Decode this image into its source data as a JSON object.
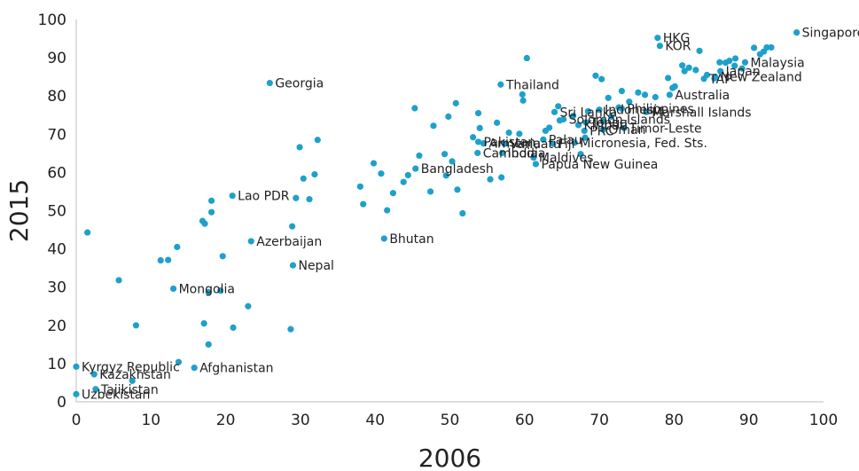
{
  "chart_data": {
    "type": "scatter",
    "xlabel": "2006",
    "ylabel": "2015",
    "xlim": [
      0,
      100
    ],
    "ylim": [
      0,
      100
    ],
    "x_ticks": [
      0,
      10,
      20,
      30,
      40,
      50,
      60,
      70,
      80,
      90,
      100
    ],
    "y_ticks": [
      0,
      10,
      20,
      30,
      40,
      50,
      60,
      70,
      80,
      90,
      100
    ],
    "grid": false,
    "point_color": "#1ea0cc",
    "points": [
      {
        "x": 0.0,
        "y": 9.2,
        "label": "Kyrgyz Republic"
      },
      {
        "x": 2.4,
        "y": 7.2,
        "label": "Kazakhstan"
      },
      {
        "x": 2.6,
        "y": 3.3,
        "label": "Tajikistan"
      },
      {
        "x": 0.0,
        "y": 2.0,
        "label": "Uzbekistan"
      },
      {
        "x": 15.8,
        "y": 8.9,
        "label": "Afghanistan"
      },
      {
        "x": 13.0,
        "y": 29.6,
        "label": "Mongolia"
      },
      {
        "x": 20.9,
        "y": 53.9,
        "label": "Lao PDR"
      },
      {
        "x": 23.4,
        "y": 42.0,
        "label": "Azerbaijan"
      },
      {
        "x": 29.0,
        "y": 35.7,
        "label": "Nepal"
      },
      {
        "x": 25.9,
        "y": 83.4,
        "label": "Georgia"
      },
      {
        "x": 41.2,
        "y": 42.7,
        "label": "Bhutan"
      },
      {
        "x": 45.4,
        "y": 61.0,
        "label": "Bangladesh"
      },
      {
        "x": 53.7,
        "y": 65.1,
        "label": "Cambodia"
      },
      {
        "x": 57.0,
        "y": 65.1,
        "label": "India"
      },
      {
        "x": 56.8,
        "y": 83.0,
        "label": "Thailand"
      },
      {
        "x": 61.5,
        "y": 62.2,
        "label": "Papua New Guinea"
      },
      {
        "x": 61.2,
        "y": 63.9,
        "label": "Maldives"
      },
      {
        "x": 53.8,
        "y": 68.0,
        "label": "Pakistan"
      },
      {
        "x": 54.5,
        "y": 67.6,
        "label": "Armenia"
      },
      {
        "x": 57.3,
        "y": 67.5,
        "label": "Vanuatu"
      },
      {
        "x": 62.5,
        "y": 68.6,
        "label": "Palau"
      },
      {
        "x": 63.8,
        "y": 67.5,
        "label": "Fiji"
      },
      {
        "x": 66.7,
        "y": 67.8,
        "label": "Micronesia, Fed. Sts."
      },
      {
        "x": 64.0,
        "y": 75.8,
        "label": "Sri Lanka"
      },
      {
        "x": 70.0,
        "y": 76.4,
        "label": "Indonesia"
      },
      {
        "x": 73.0,
        "y": 76.7,
        "label": "Philippines"
      },
      {
        "x": 76.3,
        "y": 75.8,
        "label": "Marshall Islands"
      },
      {
        "x": 65.2,
        "y": 73.9,
        "label": "Solomon Islands"
      },
      {
        "x": 68.2,
        "y": 73.1,
        "label": "Tonga"
      },
      {
        "x": 67.2,
        "y": 72.4,
        "label": "Kiribati"
      },
      {
        "x": 68.0,
        "y": 70.9,
        "label": "PRC"
      },
      {
        "x": 70.5,
        "y": 71.2,
        "label": "Oman"
      },
      {
        "x": 73.3,
        "y": 71.6,
        "label": "Timor-Leste"
      },
      {
        "x": 79.4,
        "y": 80.3,
        "label": "Australia"
      },
      {
        "x": 77.8,
        "y": 95.2,
        "label": "HKG"
      },
      {
        "x": 78.1,
        "y": 93.1,
        "label": "KOR"
      },
      {
        "x": 84.0,
        "y": 84.5,
        "label": "TAP"
      },
      {
        "x": 96.4,
        "y": 96.6,
        "label": "Singapore"
      },
      {
        "x": 89.5,
        "y": 88.8,
        "label": "Malaysia"
      },
      {
        "x": 86.2,
        "y": 86.5,
        "label": "Japan"
      },
      {
        "x": 85.5,
        "y": 85.0,
        "label": "New Zealand"
      },
      {
        "x": 1.5,
        "y": 44.3
      },
      {
        "x": 5.7,
        "y": 31.8
      },
      {
        "x": 8.0,
        "y": 20.0
      },
      {
        "x": 7.5,
        "y": 5.5
      },
      {
        "x": 11.3,
        "y": 37.0
      },
      {
        "x": 12.3,
        "y": 37.1
      },
      {
        "x": 13.5,
        "y": 40.5
      },
      {
        "x": 16.9,
        "y": 47.3
      },
      {
        "x": 17.2,
        "y": 46.6
      },
      {
        "x": 18.1,
        "y": 52.6
      },
      {
        "x": 18.1,
        "y": 49.6
      },
      {
        "x": 17.7,
        "y": 28.7
      },
      {
        "x": 19.3,
        "y": 29.1
      },
      {
        "x": 19.6,
        "y": 38.1
      },
      {
        "x": 17.1,
        "y": 20.5
      },
      {
        "x": 17.7,
        "y": 15.0
      },
      {
        "x": 21.0,
        "y": 19.4
      },
      {
        "x": 23.0,
        "y": 25.0
      },
      {
        "x": 13.7,
        "y": 10.4
      },
      {
        "x": 28.9,
        "y": 45.9
      },
      {
        "x": 28.7,
        "y": 19.0
      },
      {
        "x": 29.4,
        "y": 53.3
      },
      {
        "x": 29.9,
        "y": 66.6
      },
      {
        "x": 30.4,
        "y": 58.4
      },
      {
        "x": 31.2,
        "y": 53.0
      },
      {
        "x": 31.9,
        "y": 59.5
      },
      {
        "x": 32.3,
        "y": 68.5
      },
      {
        "x": 38.0,
        "y": 56.3
      },
      {
        "x": 38.4,
        "y": 51.7
      },
      {
        "x": 39.8,
        "y": 62.4
      },
      {
        "x": 40.8,
        "y": 59.7
      },
      {
        "x": 41.6,
        "y": 50.1
      },
      {
        "x": 42.4,
        "y": 54.6
      },
      {
        "x": 43.8,
        "y": 57.5
      },
      {
        "x": 44.4,
        "y": 59.3
      },
      {
        "x": 45.3,
        "y": 76.8
      },
      {
        "x": 45.9,
        "y": 64.4
      },
      {
        "x": 47.4,
        "y": 55.0
      },
      {
        "x": 47.8,
        "y": 72.2
      },
      {
        "x": 49.3,
        "y": 64.8
      },
      {
        "x": 49.5,
        "y": 59.2
      },
      {
        "x": 49.8,
        "y": 74.6
      },
      {
        "x": 50.3,
        "y": 62.9
      },
      {
        "x": 50.8,
        "y": 78.1
      },
      {
        "x": 51.0,
        "y": 55.5
      },
      {
        "x": 51.7,
        "y": 49.3
      },
      {
        "x": 53.1,
        "y": 69.2
      },
      {
        "x": 53.8,
        "y": 75.5
      },
      {
        "x": 54.0,
        "y": 71.6
      },
      {
        "x": 55.4,
        "y": 58.2
      },
      {
        "x": 56.3,
        "y": 73.0
      },
      {
        "x": 56.9,
        "y": 58.7
      },
      {
        "x": 57.9,
        "y": 70.4
      },
      {
        "x": 59.3,
        "y": 70.1
      },
      {
        "x": 59.7,
        "y": 80.4
      },
      {
        "x": 59.8,
        "y": 78.8
      },
      {
        "x": 60.3,
        "y": 89.9
      },
      {
        "x": 62.8,
        "y": 70.9
      },
      {
        "x": 63.3,
        "y": 71.7
      },
      {
        "x": 64.5,
        "y": 77.3
      },
      {
        "x": 64.7,
        "y": 73.6
      },
      {
        "x": 66.5,
        "y": 74.8
      },
      {
        "x": 67.5,
        "y": 64.8
      },
      {
        "x": 68.1,
        "y": 69.1
      },
      {
        "x": 68.5,
        "y": 76.0
      },
      {
        "x": 69.5,
        "y": 85.3
      },
      {
        "x": 70.3,
        "y": 84.4
      },
      {
        "x": 70.5,
        "y": 73.4
      },
      {
        "x": 71.2,
        "y": 79.5
      },
      {
        "x": 71.6,
        "y": 74.6
      },
      {
        "x": 72.6,
        "y": 77.0
      },
      {
        "x": 73.0,
        "y": 81.3
      },
      {
        "x": 74.0,
        "y": 78.5
      },
      {
        "x": 75.2,
        "y": 80.9
      },
      {
        "x": 76.1,
        "y": 80.3
      },
      {
        "x": 77.5,
        "y": 79.7
      },
      {
        "x": 79.2,
        "y": 84.7
      },
      {
        "x": 79.8,
        "y": 82.1
      },
      {
        "x": 80.1,
        "y": 82.5
      },
      {
        "x": 81.1,
        "y": 88.0
      },
      {
        "x": 81.4,
        "y": 86.5
      },
      {
        "x": 82.0,
        "y": 87.4
      },
      {
        "x": 82.9,
        "y": 86.8
      },
      {
        "x": 83.4,
        "y": 91.8
      },
      {
        "x": 84.4,
        "y": 85.5
      },
      {
        "x": 85.4,
        "y": 84.6
      },
      {
        "x": 86.1,
        "y": 88.8
      },
      {
        "x": 86.9,
        "y": 88.7
      },
      {
        "x": 87.4,
        "y": 89.2
      },
      {
        "x": 88.1,
        "y": 87.9
      },
      {
        "x": 88.2,
        "y": 89.8
      },
      {
        "x": 89.1,
        "y": 87.2
      },
      {
        "x": 90.7,
        "y": 92.6
      },
      {
        "x": 91.5,
        "y": 90.9
      },
      {
        "x": 92.0,
        "y": 91.6
      },
      {
        "x": 92.4,
        "y": 92.7
      },
      {
        "x": 93.0,
        "y": 92.7
      }
    ]
  }
}
